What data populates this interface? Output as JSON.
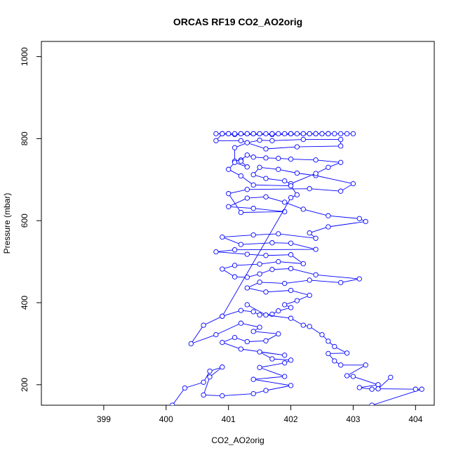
{
  "chart_data": {
    "type": "line",
    "title": "ORCAS RF19 CO2_AO2orig",
    "xlabel": "CO2_AO2orig",
    "ylabel": "Pressure (mbar)",
    "xlim": [
      398.0,
      404.3
    ],
    "ylim": [
      1037,
      150
    ],
    "y_reversed": true,
    "xticks": [
      399,
      400,
      401,
      402,
      403,
      404
    ],
    "yticks": [
      200,
      400,
      600,
      800,
      1000
    ],
    "marker": "open-circle",
    "grid": false,
    "legend": "none",
    "series": [
      {
        "color": "#0000ff",
        "points": [
          [
            400.1,
            150
          ],
          [
            400.3,
            192
          ],
          [
            400.6,
            206
          ],
          [
            400.7,
            233
          ],
          [
            400.9,
            243
          ],
          [
            400.7,
            219
          ],
          [
            400.6,
            175
          ],
          [
            400.9,
            173
          ],
          [
            401.4,
            178
          ],
          [
            401.6,
            186
          ],
          [
            402.0,
            198
          ],
          [
            401.4,
            213
          ],
          [
            401.9,
            220
          ],
          [
            401.5,
            242
          ],
          [
            401.9,
            253
          ],
          [
            402.0,
            260
          ],
          [
            401.7,
            263
          ],
          [
            401.5,
            280
          ],
          [
            401.9,
            272
          ],
          [
            401.2,
            287
          ],
          [
            400.9,
            303
          ],
          [
            401.1,
            315
          ],
          [
            401.3,
            305
          ],
          [
            401.6,
            307
          ],
          [
            401.8,
            324
          ],
          [
            401.4,
            330
          ],
          [
            401.5,
            340
          ],
          [
            401.2,
            350
          ],
          [
            400.8,
            322
          ],
          [
            400.4,
            300
          ],
          [
            400.6,
            345
          ],
          [
            400.9,
            367
          ],
          [
            401.2,
            381
          ],
          [
            401.4,
            378
          ],
          [
            401.5,
            370
          ],
          [
            401.7,
            372
          ],
          [
            401.8,
            380
          ],
          [
            402.0,
            388
          ],
          [
            401.9,
            395
          ],
          [
            402.1,
            405
          ],
          [
            402.3,
            418
          ],
          [
            402.0,
            430
          ],
          [
            401.6,
            426
          ],
          [
            401.3,
            436
          ],
          [
            401.5,
            450
          ],
          [
            401.9,
            447
          ],
          [
            402.3,
            455
          ],
          [
            402.8,
            449
          ],
          [
            403.1,
            458
          ],
          [
            402.4,
            468
          ],
          [
            402.0,
            483
          ],
          [
            401.7,
            481
          ],
          [
            401.5,
            470
          ],
          [
            401.3,
            462
          ],
          [
            401.1,
            463
          ],
          [
            400.9,
            482
          ],
          [
            401.1,
            491
          ],
          [
            401.5,
            494
          ],
          [
            401.8,
            500
          ],
          [
            402.2,
            495
          ],
          [
            402.0,
            517
          ],
          [
            401.6,
            515
          ],
          [
            401.3,
            518
          ],
          [
            400.8,
            524
          ],
          [
            401.1,
            529
          ],
          [
            402.4,
            530
          ],
          [
            402.0,
            545
          ],
          [
            401.7,
            546
          ],
          [
            401.2,
            542
          ],
          [
            400.9,
            560
          ],
          [
            401.4,
            565
          ],
          [
            401.8,
            568
          ],
          [
            402.4,
            557
          ],
          [
            402.3,
            570
          ],
          [
            402.6,
            585
          ],
          [
            403.2,
            598
          ],
          [
            403.1,
            605
          ],
          [
            402.6,
            612
          ],
          [
            402.2,
            628
          ],
          [
            401.9,
            645
          ],
          [
            401.6,
            658
          ],
          [
            401.3,
            655
          ],
          [
            401.0,
            634
          ],
          [
            401.4,
            630
          ],
          [
            401.9,
            622
          ],
          [
            401.2,
            620
          ],
          [
            401.0,
            666
          ],
          [
            401.3,
            676
          ],
          [
            402.3,
            678
          ],
          [
            402.8,
            672
          ],
          [
            403.0,
            690
          ],
          [
            402.4,
            710
          ],
          [
            402.1,
            716
          ],
          [
            401.8,
            725
          ],
          [
            401.5,
            730
          ],
          [
            401.4,
            712
          ],
          [
            401.6,
            703
          ],
          [
            401.9,
            697
          ],
          [
            402.0,
            690
          ],
          [
            402.4,
            715
          ],
          [
            402.6,
            730
          ],
          [
            402.8,
            742
          ],
          [
            402.4,
            748
          ],
          [
            402.0,
            750
          ],
          [
            401.8,
            752
          ],
          [
            401.6,
            753
          ],
          [
            401.4,
            755
          ],
          [
            401.3,
            760
          ],
          [
            401.2,
            748
          ],
          [
            401.1,
            745
          ],
          [
            401.1,
            778
          ],
          [
            401.3,
            790
          ],
          [
            401.5,
            796
          ],
          [
            401.7,
            795
          ],
          [
            402.2,
            798
          ],
          [
            402.8,
            798
          ],
          [
            402.8,
            782
          ],
          [
            402.1,
            780
          ],
          [
            401.6,
            775
          ],
          [
            401.2,
            795
          ],
          [
            400.8,
            795
          ],
          [
            400.9,
            812
          ],
          [
            401.5,
            812
          ],
          [
            402.0,
            812
          ],
          [
            402.4,
            812
          ],
          [
            402.9,
            812
          ],
          [
            402.3,
            812
          ],
          [
            401.9,
            812
          ],
          [
            401.4,
            812
          ],
          [
            400.9,
            812
          ],
          [
            401.0,
            812
          ],
          [
            401.7,
            812
          ],
          [
            402.5,
            812
          ],
          [
            403.0,
            812
          ],
          [
            402.6,
            812
          ],
          [
            401.7,
            810
          ],
          [
            401.1,
            810
          ],
          [
            400.8,
            812
          ],
          [
            401.3,
            812
          ],
          [
            402.7,
            812
          ],
          [
            402.6,
            812
          ],
          [
            402.2,
            812
          ],
          [
            401.8,
            812
          ],
          [
            402.0,
            812
          ],
          [
            402.3,
            812
          ],
          [
            402.5,
            812
          ],
          [
            402.1,
            812
          ],
          [
            401.5,
            812
          ],
          [
            401.4,
            812
          ],
          [
            401.2,
            812
          ],
          [
            400.9,
            812
          ],
          [
            401.0,
            812
          ],
          [
            401.2,
            812
          ],
          [
            401.6,
            812
          ],
          [
            402.2,
            812
          ],
          [
            402.4,
            812
          ],
          [
            402.6,
            812
          ],
          [
            402.8,
            812
          ],
          [
            402.4,
            812
          ],
          [
            402.0,
            812
          ],
          [
            401.7,
            812
          ],
          [
            401.4,
            812
          ],
          [
            401.3,
            812
          ],
          [
            401.1,
            812
          ]
        ]
      },
      {
        "color": "#0000ff",
        "points": [
          [
            401.3,
            395
          ],
          [
            401.6,
            370
          ],
          [
            402.0,
            362
          ],
          [
            402.2,
            345
          ],
          [
            402.3,
            342
          ],
          [
            402.5,
            322
          ],
          [
            402.6,
            306
          ],
          [
            402.7,
            293
          ],
          [
            402.9,
            277
          ],
          [
            402.6,
            276
          ],
          [
            402.7,
            258
          ],
          [
            402.8,
            248
          ],
          [
            403.2,
            248
          ],
          [
            402.9,
            222
          ],
          [
            403.0,
            220
          ],
          [
            403.4,
            200
          ],
          [
            403.1,
            193
          ],
          [
            403.3,
            189
          ],
          [
            403.4,
            190
          ],
          [
            403.6,
            218
          ],
          [
            403.4,
            190
          ],
          [
            404.0,
            189
          ],
          [
            404.1,
            189
          ],
          [
            403.3,
            150
          ]
        ]
      },
      {
        "color": "#0000ff",
        "points": [
          [
            400.9,
            367
          ],
          [
            402.0,
            656
          ],
          [
            402.1,
            663
          ],
          [
            402.0,
            685
          ],
          [
            401.4,
            687
          ],
          [
            401.2,
            709
          ],
          [
            401.0,
            725
          ],
          [
            401.1,
            742
          ],
          [
            401.3,
            731
          ],
          [
            401.2,
            745
          ]
        ]
      }
    ]
  }
}
